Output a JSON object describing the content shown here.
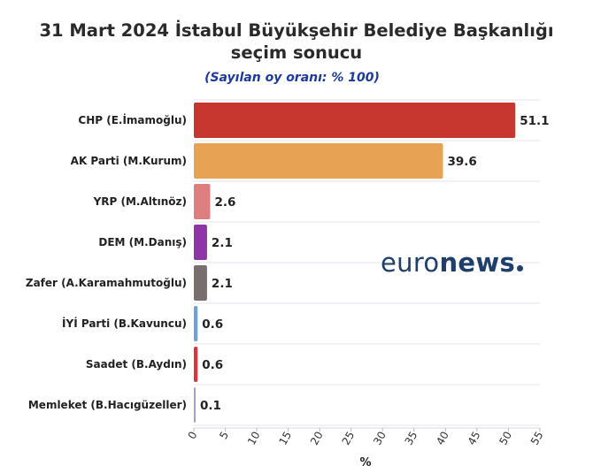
{
  "chart_data": {
    "type": "bar",
    "orientation": "horizontal",
    "title": "31 Mart 2024 İstabul Büyükşehir Belediye Başkanlığı seçim sonucu",
    "title_lines": [
      "31 Mart 2024 İstabul Büyükşehir Belediye Başkanlığı",
      "seçim sonucu"
    ],
    "subtitle": "(Sayılan oy oranı: % 100)",
    "xlabel": "%",
    "categories": [
      "CHP (E.İmamoğlu)",
      "AK Parti (M.Kurum)",
      "YRP (M.Altınöz)",
      "DEM (M.Danış)",
      "Zafer (A.Karamahmutoğlu)",
      "İYİ Parti (B.Kavuncu)",
      "Saadet (B.Aydın)",
      "Memleket (B.Hacıgüzeller)"
    ],
    "values": [
      51.1,
      39.6,
      2.6,
      2.1,
      2.1,
      0.6,
      0.6,
      0.1
    ],
    "value_labels": [
      "51.1",
      "39.6",
      "2.6",
      "2.1",
      "2.1",
      "0.6",
      "0.6",
      "0.1"
    ],
    "colors": [
      "#c8372f",
      "#e7a254",
      "#de7f7f",
      "#8e35a8",
      "#786e6e",
      "#6ca3d6",
      "#d9383a",
      "#9aa2ce"
    ],
    "xlim": [
      0,
      55
    ],
    "xticks": [
      0,
      5,
      10,
      15,
      20,
      25,
      30,
      35,
      40,
      45,
      50,
      55
    ],
    "grid": true
  },
  "logo": {
    "part1": "euro",
    "part2": "news"
  }
}
